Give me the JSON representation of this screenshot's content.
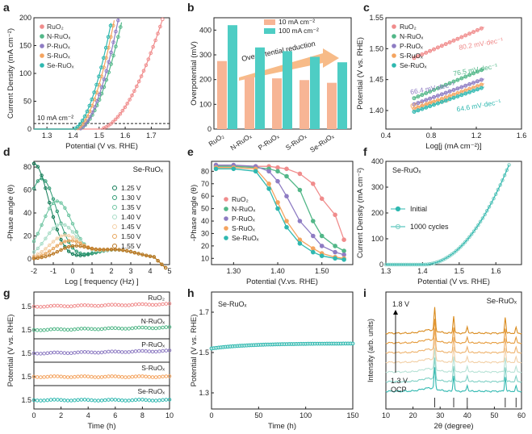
{
  "colors": {
    "RuO2": "#f08c8c",
    "N": "#52b788",
    "P": "#8e7cc3",
    "S": "#f4a460",
    "Se": "#2fb8b0",
    "bar_low": "#f7b595",
    "bar_high": "#4ecdc4",
    "arrow": "#f4a460"
  },
  "chart_data": [
    {
      "id": "a",
      "type": "line",
      "panel_label": "a",
      "xlabel": "Potential (V vs. RHE)",
      "ylabel": "Current Density (mA cm⁻²)",
      "xlim": [
        1.25,
        1.77
      ],
      "ylim": [
        0,
        200
      ],
      "xticks": [
        1.3,
        1.4,
        1.5,
        1.6,
        1.7
      ],
      "yticks": [
        0,
        50,
        100,
        150,
        200
      ],
      "annotation": "10 mA cm⁻²",
      "hline": 10,
      "series": [
        {
          "name": "RuO₂",
          "key": "RuO2",
          "onset": 1.5,
          "end": 1.745
        },
        {
          "name": "N-RuOₓ",
          "key": "N",
          "onset": 1.42,
          "end": 1.59
        },
        {
          "name": "P-RuOₓ",
          "key": "P",
          "onset": 1.42,
          "end": 1.575
        },
        {
          "name": "S-RuOₓ",
          "key": "S",
          "onset": 1.41,
          "end": 1.56
        },
        {
          "name": "Se-RuOₓ",
          "key": "Se",
          "onset": 1.4,
          "end": 1.55
        }
      ]
    },
    {
      "id": "b",
      "type": "bar",
      "panel_label": "b",
      "ylabel": "Overpotential (mV)",
      "ylim": [
        0,
        450
      ],
      "yticks": [
        0,
        100,
        200,
        300,
        400
      ],
      "categories": [
        "RuO₂",
        "N-RuOₓ",
        "P-RuOₓ",
        "S-RuOₓ",
        "Se-RuOₓ"
      ],
      "series": [
        {
          "name": "10 mA cm⁻²",
          "values": [
            275,
            210,
            205,
            198,
            187
          ]
        },
        {
          "name": "100 mA cm⁻²",
          "values": [
            420,
            330,
            315,
            292,
            270
          ]
        }
      ],
      "annotation": "Overpotential reduction"
    },
    {
      "id": "c",
      "type": "scatter",
      "panel_label": "c",
      "xlabel": "Log[j (mA cm⁻²)]",
      "ylabel": "Potential (V vs. RHE)",
      "xlim": [
        0.4,
        1.6
      ],
      "ylim": [
        1.37,
        1.55
      ],
      "xticks": [
        0.4,
        0.8,
        1.2,
        1.6
      ],
      "yticks": [
        1.4,
        1.45,
        1.5,
        1.55
      ],
      "series": [
        {
          "name": "RuO₂",
          "key": "RuO2",
          "y0": 1.485,
          "slope": 0.0802,
          "label": "80.2 mV·dec⁻¹"
        },
        {
          "name": "N-RuOₓ",
          "key": "N",
          "y0": 1.42,
          "slope": 0.0765,
          "label": "76.5 mV·dec⁻¹"
        },
        {
          "name": "P-RuOₓ",
          "key": "P",
          "y0": 1.41,
          "slope": 0.0664,
          "label": "66.4 mV·dec⁻¹"
        },
        {
          "name": "S-RuOₓ",
          "key": "S",
          "y0": 1.403,
          "slope": 0.0652,
          "label": "65.2 mV·dec⁻¹"
        },
        {
          "name": "Se-RuOₓ",
          "key": "Se",
          "y0": 1.398,
          "slope": 0.0646,
          "label": "64.6 mV·dec⁻¹"
        }
      ]
    },
    {
      "id": "d",
      "type": "line",
      "panel_label": "d",
      "title": "Se-RuOₓ",
      "xlabel": "Log [ frequency (Hz) ]",
      "ylabel": "-Phase angle (θ)",
      "xlim": [
        -2,
        5
      ],
      "ylim": [
        -5,
        85
      ],
      "xticks": [
        -2,
        -1,
        0,
        1,
        2,
        3,
        4,
        5
      ],
      "yticks": [
        0,
        20,
        40,
        60,
        80
      ],
      "series": [
        {
          "name": "1.25 V",
          "peak": 83,
          "px": -2.0,
          "col": "#0f7a55"
        },
        {
          "name": "1.30 V",
          "peak": 70,
          "px": -1.6,
          "col": "#2e9a73"
        },
        {
          "name": "1.35 V",
          "peak": 50,
          "px": -0.8,
          "col": "#6cc4a0"
        },
        {
          "name": "1.40 V",
          "peak": 30,
          "px": -0.6,
          "col": "#a7dcc6"
        },
        {
          "name": "1.45 V",
          "peak": 20,
          "px": -0.4,
          "col": "#f3cfa6"
        },
        {
          "name": "1.50 V",
          "peak": 15,
          "px": -0.2,
          "col": "#e6a45a"
        },
        {
          "name": "1.55 V",
          "peak": 10,
          "px": 0.0,
          "col": "#b8741e"
        }
      ]
    },
    {
      "id": "e",
      "type": "line",
      "panel_label": "e",
      "xlabel": "Potential (V.vs. RHE)",
      "ylabel": "-Phase angle (θ)",
      "xlim": [
        1.25,
        1.57
      ],
      "ylim": [
        5,
        88
      ],
      "xticks": [
        1.3,
        1.4,
        1.5
      ],
      "yticks": [
        10,
        20,
        30,
        40,
        50,
        60,
        70,
        80
      ],
      "x": [
        1.26,
        1.3,
        1.35,
        1.38,
        1.4,
        1.42,
        1.45,
        1.48,
        1.5,
        1.53,
        1.55
      ],
      "series": [
        {
          "name": "RuO₂",
          "key": "RuO2",
          "values": [
            85,
            84,
            84,
            84,
            83,
            82,
            78,
            70,
            58,
            45,
            25
          ]
        },
        {
          "name": "N-RuOₓ",
          "key": "N",
          "values": [
            84,
            84,
            83,
            82,
            80,
            76,
            65,
            40,
            28,
            20,
            16
          ]
        },
        {
          "name": "P-RuOₓ",
          "key": "P",
          "values": [
            85,
            85,
            84,
            80,
            72,
            60,
            40,
            28,
            20,
            15,
            13
          ]
        },
        {
          "name": "S-RuOₓ",
          "key": "S",
          "values": [
            83,
            83,
            82,
            70,
            55,
            40,
            25,
            18,
            14,
            11,
            10
          ]
        },
        {
          "name": "Se-RuOₓ",
          "key": "Se",
          "values": [
            82,
            82,
            80,
            66,
            50,
            35,
            22,
            15,
            12,
            10,
            9
          ]
        }
      ]
    },
    {
      "id": "f",
      "type": "line",
      "panel_label": "f",
      "title": "Se-RuOₓ",
      "xlabel": "Potential (V vs. RHE)",
      "ylabel": "Current Density (mA cm⁻²)",
      "xlim": [
        1.3,
        1.67
      ],
      "ylim": [
        0,
        400
      ],
      "xticks": [
        1.3,
        1.4,
        1.5,
        1.6
      ],
      "yticks": [
        0,
        100,
        200,
        300,
        400
      ],
      "series": [
        {
          "name": "Initial"
        },
        {
          "name": "1000 cycles"
        }
      ]
    },
    {
      "id": "g",
      "type": "line",
      "panel_label": "g",
      "xlabel": "Time (h)",
      "ylabel": "Potential (V vs. RHE)",
      "xlim": [
        0,
        10
      ],
      "xticks": [
        0,
        2,
        4,
        6,
        8,
        10
      ],
      "ytick_label": "1.5",
      "series": [
        {
          "name": "RuO₂",
          "key": "RuO2",
          "level": 1.53
        },
        {
          "name": "N-RuOₓ",
          "key": "N",
          "level": 1.52
        },
        {
          "name": "P-RuOₓ",
          "key": "P",
          "level": 1.51
        },
        {
          "name": "S-RuOₓ",
          "key": "S",
          "level": 1.49
        },
        {
          "name": "Se-RuOₓ",
          "key": "Se",
          "level": 1.47
        }
      ]
    },
    {
      "id": "h",
      "type": "line",
      "panel_label": "h",
      "title": "Se-RuOₓ",
      "xlabel": "Time (h)",
      "ylabel": "Potential (V vs. RHE)",
      "xlim": [
        0,
        150
      ],
      "ylim": [
        1.22,
        1.8
      ],
      "xticks": [
        0,
        50,
        100,
        150
      ],
      "yticks": [
        1.3,
        1.5,
        1.7
      ],
      "start": 1.52,
      "end": 1.545
    },
    {
      "id": "i",
      "type": "line",
      "panel_label": "i",
      "title": "Se-RuOₓ",
      "xlabel": "2θ (degree)",
      "ylabel": "Intensity (arb. units)",
      "xlim": [
        10,
        60
      ],
      "xticks": [
        10,
        20,
        30,
        40,
        50,
        60
      ],
      "top_label": "1.8 V",
      "mid_label": "1.3 V",
      "bottom_label": "OCP",
      "peaks": [
        28,
        35,
        40,
        54,
        58
      ],
      "series": [
        {
          "col": "#2fb8b0"
        },
        {
          "col": "#7fd0c5"
        },
        {
          "col": "#b7e2d6"
        },
        {
          "col": "#f2cfa5"
        },
        {
          "col": "#eeb26c"
        },
        {
          "col": "#e59a3a"
        },
        {
          "col": "#d98a1c"
        }
      ]
    }
  ]
}
